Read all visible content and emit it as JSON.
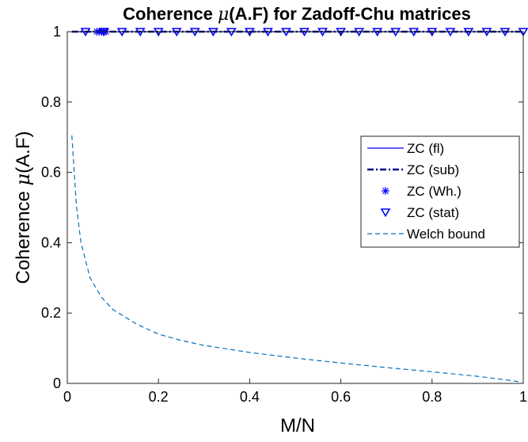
{
  "chart_data": {
    "type": "line",
    "title_prefix": "Coherence ",
    "title_mu": "μ",
    "title_suffix": "(A.F) for Zadoff-Chu matrices",
    "xlabel": "M/N",
    "ylabel_prefix": "Coherence ",
    "ylabel_mu": "μ",
    "ylabel_suffix": "(A.F)",
    "xlim": [
      0,
      1
    ],
    "ylim": [
      0,
      1
    ],
    "xticks": [
      0,
      0.2,
      0.4,
      0.6,
      0.8,
      1
    ],
    "yticks": [
      0,
      0.2,
      0.4,
      0.6,
      0.8,
      1
    ],
    "xtick_labels": [
      "0",
      "0.2",
      "0.4",
      "0.6",
      "0.8",
      "1"
    ],
    "ytick_labels": [
      "0",
      "0.2",
      "0.4",
      "0.6",
      "0.8",
      "1"
    ],
    "grid": false,
    "legend_position": "center-right",
    "series": [
      {
        "name": "ZC (fl)",
        "style": "solid",
        "color": "#0000ff",
        "x": [
          0.01,
          1.0
        ],
        "values": [
          1,
          1
        ]
      },
      {
        "name": "ZC (sub)",
        "style": "dashdot",
        "color": "#00008b",
        "x": [
          0.01,
          1.0
        ],
        "values": [
          1,
          1
        ]
      },
      {
        "name": "ZC (Wh.)",
        "style": "asterisk",
        "color": "#0000ff",
        "x": [
          0.065,
          0.07,
          0.075,
          0.08,
          0.085
        ],
        "values": [
          1,
          1,
          1,
          1,
          1
        ]
      },
      {
        "name": "ZC (stat)",
        "style": "triangle-down",
        "color": "#0000ff",
        "x": [
          0.04,
          0.08,
          0.12,
          0.16,
          0.2,
          0.24,
          0.28,
          0.32,
          0.36,
          0.4,
          0.44,
          0.48,
          0.52,
          0.56,
          0.6,
          0.64,
          0.68,
          0.72,
          0.76,
          0.8,
          0.84,
          0.88,
          0.92,
          0.96,
          1.0
        ],
        "values": [
          1,
          1,
          1,
          1,
          1,
          1,
          1,
          1,
          1,
          1,
          1,
          1,
          1,
          1,
          1,
          1,
          1,
          1,
          1,
          1,
          1,
          1,
          1,
          1,
          1
        ]
      },
      {
        "name": "Welch bound",
        "style": "dashed",
        "color": "#0072bd",
        "x": [
          0.01,
          0.02,
          0.03,
          0.05,
          0.075,
          0.1,
          0.15,
          0.2,
          0.25,
          0.3,
          0.4,
          0.5,
          0.6,
          0.7,
          0.8,
          0.9,
          0.95,
          0.99
        ],
        "values": [
          0.705,
          0.505,
          0.4,
          0.3,
          0.245,
          0.21,
          0.17,
          0.14,
          0.122,
          0.108,
          0.088,
          0.072,
          0.058,
          0.045,
          0.033,
          0.02,
          0.012,
          0.005
        ]
      }
    ]
  }
}
